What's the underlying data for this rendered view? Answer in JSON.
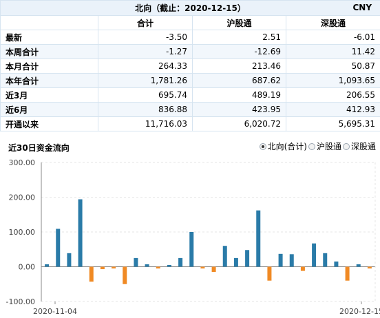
{
  "summary": {
    "title": "北向（截止：2020-12-15）",
    "unit": "CNY",
    "columns": [
      "合计",
      "沪股通",
      "深股通"
    ],
    "rows": [
      {
        "label": "最新",
        "values": [
          "-3.50",
          "2.51",
          "-6.01"
        ]
      },
      {
        "label": "本周合计",
        "values": [
          "-1.27",
          "-12.69",
          "11.42"
        ]
      },
      {
        "label": "本月合计",
        "values": [
          "264.33",
          "213.46",
          "50.87"
        ]
      },
      {
        "label": "本年合计",
        "values": [
          "1,781.26",
          "687.62",
          "1,093.65"
        ]
      },
      {
        "label": "近3月",
        "values": [
          "695.74",
          "489.19",
          "206.55"
        ]
      },
      {
        "label": "近6月",
        "values": [
          "836.88",
          "423.95",
          "412.93"
        ]
      },
      {
        "label": "开通以来",
        "values": [
          "11,716.03",
          "6,020.72",
          "5,695.31"
        ]
      }
    ]
  },
  "chart_section": {
    "title": "近30日资金流向",
    "options": [
      {
        "label": "北向(合计)",
        "checked": true
      },
      {
        "label": "沪股通",
        "checked": false
      },
      {
        "label": "深股通",
        "checked": false
      }
    ]
  },
  "chart_data": {
    "type": "bar",
    "ylim": [
      -100,
      300
    ],
    "yticks": [
      "300.00",
      "200.00",
      "100.00",
      "0.00",
      "-100.00"
    ],
    "xtick_labels": [
      "2020-11-04",
      "2020-12-15"
    ],
    "colors": {
      "positive": "#2a7ba8",
      "negative": "#f08a24"
    },
    "values": [
      7,
      109,
      39,
      194,
      -43,
      -7,
      -5,
      -50,
      25,
      7,
      -5,
      5,
      25,
      100,
      -5,
      -15,
      60,
      25,
      48,
      162,
      -40,
      37,
      36,
      -12,
      67,
      39,
      15,
      -40,
      7,
      -5
    ]
  }
}
